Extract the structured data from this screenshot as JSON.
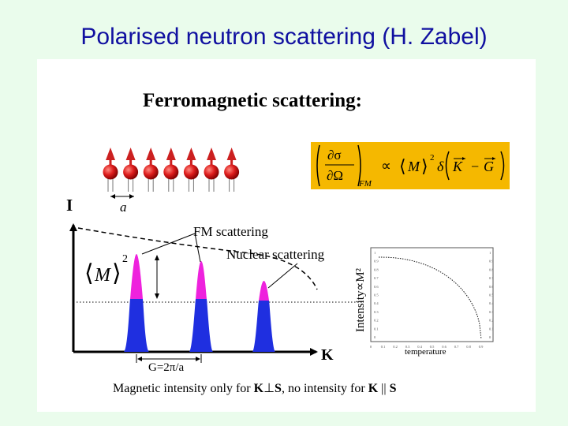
{
  "slide": {
    "title": "Polarised neutron scattering (H. Zabel)"
  },
  "figure": {
    "heading": "Ferromagnetic scattering:",
    "spin_chain": {
      "count": 7,
      "spin_color": "#cc1010",
      "arrow_color": "#cc2020",
      "lattice_label": "a"
    },
    "formula": {
      "numerator": "∂σ",
      "denominator": "∂Ω",
      "subscript": "FM",
      "proportional": "∝",
      "moment": "M",
      "exponent": "2",
      "delta": "δ",
      "vec_k": "K",
      "minus": "−",
      "vec_g": "G",
      "background_color": "#f5b800"
    },
    "main_plot": {
      "y_axis_label": "I",
      "x_axis_label": "K",
      "moment_symbol": "M",
      "moment_exponent": "2",
      "fm_label": "FM scattering",
      "nuclear_label": "Nuclear scattering",
      "g_label": "G=2π/a",
      "nuclear_color": "#1f2fe0",
      "magnetic_color": "#ee22dd"
    },
    "inset": {
      "y_label": "Intensity∝M²",
      "x_label": "temperature",
      "x_ticks": [
        "0",
        "0.1",
        "0.2",
        "0.3",
        "0.4",
        "0.5",
        "0.6",
        "0.7",
        "0.8",
        "0.9"
      ],
      "y_ticks": [
        "0",
        "0.1",
        "0.2",
        "0.3",
        "0.4",
        "0.5",
        "0.6",
        "0.7",
        "0.8",
        "0.9",
        "1"
      ]
    },
    "caption": {
      "part1": "Magnetic intensity only for ",
      "k1": "K",
      "perp": "⊥",
      "s1": "S",
      "part2": ", no intensity for ",
      "k2": "K",
      "parallel": " || ",
      "s2": "S"
    }
  }
}
